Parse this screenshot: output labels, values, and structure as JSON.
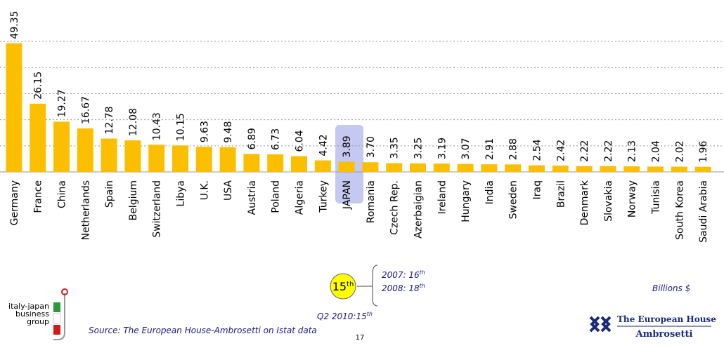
{
  "chart_data": {
    "type": "bar",
    "categories": [
      "Germany",
      "France",
      "China",
      "Netherlands",
      "Spain",
      "Belgium",
      "Switzerland",
      "Libya",
      "U.K.",
      "USA",
      "Austria",
      "Poland",
      "Algeria",
      "Turkey",
      "JAPAN",
      "Romania",
      "Czech Rep.",
      "Azerbaigian",
      "Ireland",
      "Hungary",
      "India",
      "Sweden",
      "Iraq",
      "Brazil",
      "Denmark",
      "Slovakia",
      "Norway",
      "Tunisia",
      "South Korea",
      "Saudi Arabia"
    ],
    "values": [
      49.35,
      26.15,
      19.27,
      16.67,
      12.78,
      12.08,
      10.43,
      10.15,
      9.63,
      9.48,
      6.89,
      6.73,
      6.04,
      4.42,
      3.89,
      3.7,
      3.35,
      3.25,
      3.19,
      3.07,
      2.91,
      2.88,
      2.54,
      2.42,
      2.22,
      2.22,
      2.13,
      2.04,
      2.02,
      1.96
    ],
    "value_labels": [
      "49.35",
      "26.15",
      "19.27",
      "16.67",
      "12.78",
      "12.08",
      "10.43",
      "10.15",
      "9.63",
      "9.48",
      "6.89",
      "6.73",
      "6.04",
      "4.42",
      "3.89",
      "3.70",
      "3.35",
      "3.25",
      "3.19",
      "3.07",
      "2.91",
      "2.88",
      "2.54",
      "2.42",
      "2.22",
      "2.22",
      "2.13",
      "2.04",
      "2.02",
      "1.96"
    ],
    "color": "#fcbf00",
    "ylim": [
      0,
      60
    ],
    "yticks": [
      0,
      10,
      20,
      30,
      40,
      50
    ],
    "grid": true
  },
  "rank": {
    "text": "15",
    "sup": "th"
  },
  "history": [
    {
      "text": "2007: 16",
      "sup": "th"
    },
    {
      "text": "2008: 18",
      "sup": "th"
    }
  ],
  "q2": {
    "text": "Q2 2010:15",
    "sup": "th"
  },
  "unit": "Billions $",
  "source": "Source: The European House-Ambrosetti on Istat data",
  "page_number": "17",
  "logo_left": [
    "italy-japan",
    "business",
    "group"
  ],
  "logo_right": [
    "The European House",
    "Ambrosetti"
  ]
}
